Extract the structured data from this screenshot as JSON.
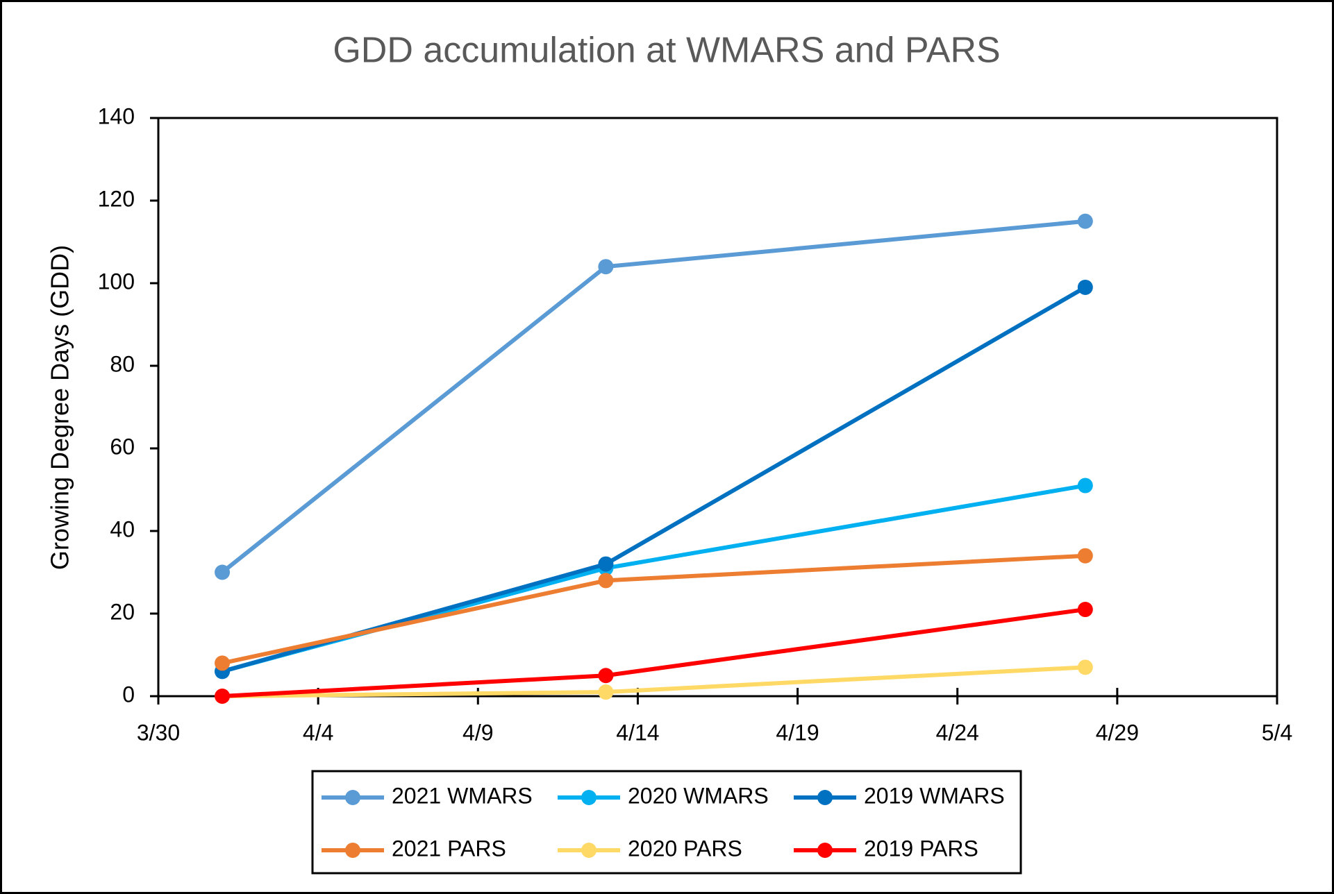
{
  "chart_data": {
    "type": "line",
    "title": "GDD accumulation at WMARS and PARS",
    "y_label": "Growing Degree Days (GDD)",
    "x": [
      "4/1",
      "4/13",
      "4/28"
    ],
    "series": [
      {
        "name": "2021 WMARS",
        "color": "#5b9bd5",
        "values": [
          30,
          104,
          115
        ]
      },
      {
        "name": "2020 WMARS",
        "color": "#00b0f0",
        "values": [
          6,
          31,
          51
        ]
      },
      {
        "name": "2019 WMARS",
        "color": "#0070c0",
        "values": [
          6,
          32,
          99
        ]
      },
      {
        "name": "2021 PARS",
        "color": "#ed7d31",
        "values": [
          8,
          28,
          34
        ]
      },
      {
        "name": "2020 PARS",
        "color": "#ffd966",
        "values": [
          0,
          1,
          7
        ]
      },
      {
        "name": "2019 PARS",
        "color": "#ff0000",
        "values": [
          0,
          5,
          21
        ]
      }
    ],
    "xlim": [
      "3/30",
      "5/4"
    ],
    "xticks": [
      "3/30",
      "4/4",
      "4/9",
      "4/14",
      "4/19",
      "4/24",
      "4/29",
      "5/4"
    ],
    "ylim": [
      0,
      140
    ],
    "yticks": [
      0,
      20,
      40,
      60,
      80,
      100,
      120,
      140
    ],
    "grid": false,
    "legend": "bottom"
  }
}
